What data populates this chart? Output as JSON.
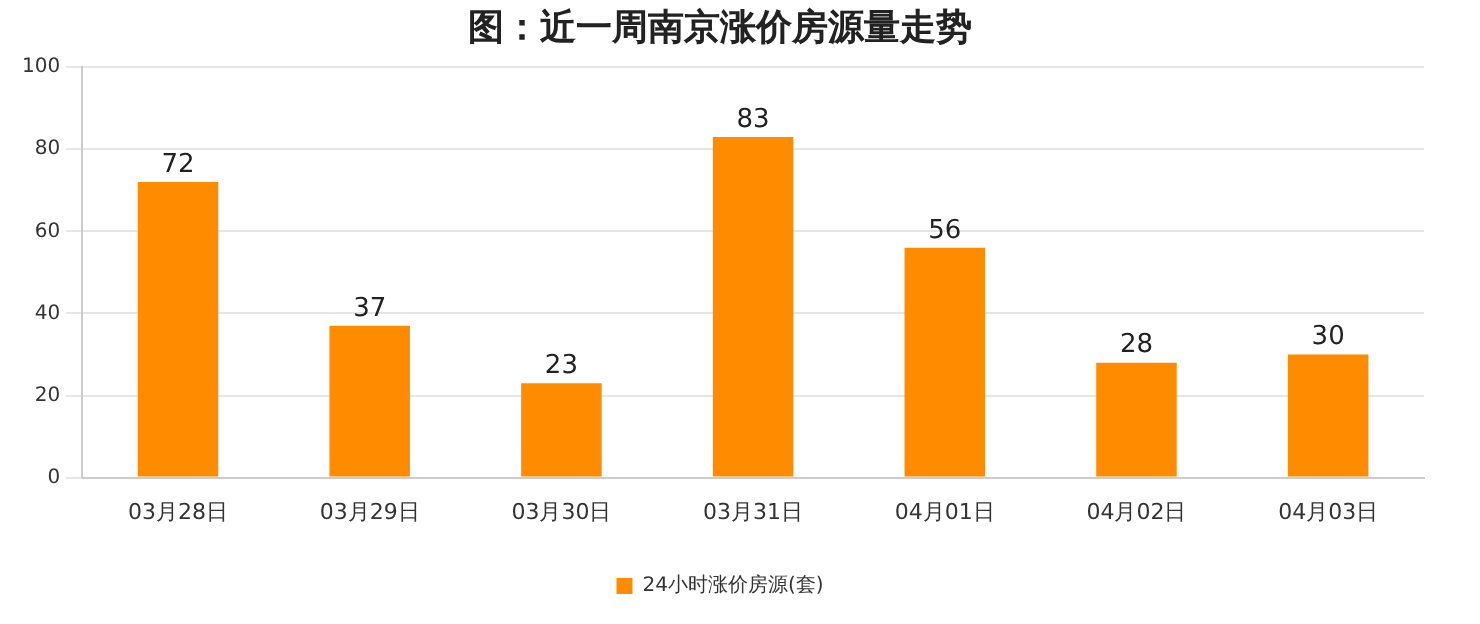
{
  "chart_data": {
    "type": "bar",
    "title": "图：近一周南京涨价房源量走势",
    "categories": [
      "03月28日",
      "03月29日",
      "03月30日",
      "03月31日",
      "04月01日",
      "04月02日",
      "04月03日"
    ],
    "series": [
      {
        "name": "24小时涨价房源(套)",
        "color": "#ff8c00",
        "values": [
          72,
          37,
          23,
          83,
          56,
          28,
          30
        ]
      }
    ],
    "ylim": [
      0,
      100
    ],
    "yticks": [
      0,
      20,
      40,
      60,
      80,
      100
    ],
    "grid": "y",
    "legend": "bottom",
    "data_labels": true
  }
}
